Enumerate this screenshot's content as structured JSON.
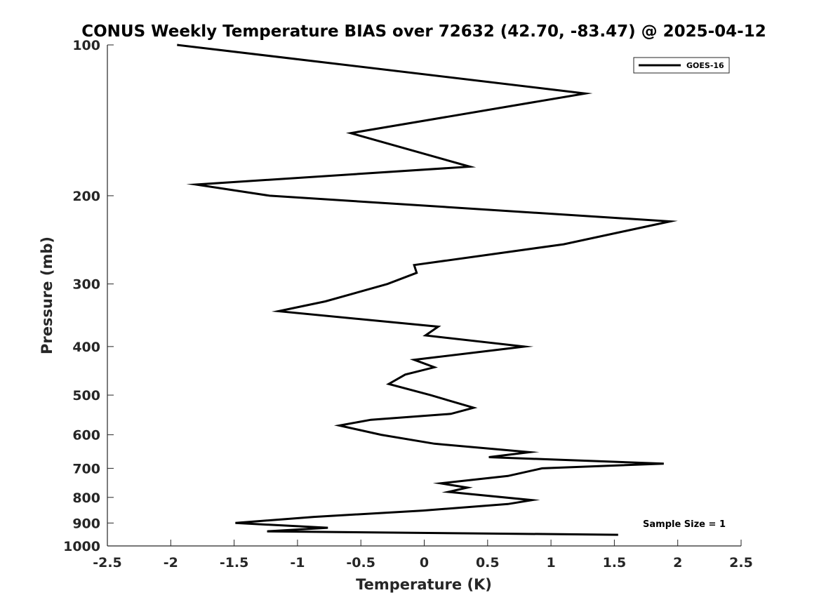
{
  "chart_data": {
    "type": "line",
    "title": "CONUS Weekly Temperature BIAS over 72632 (42.70, -83.47) @ 2025-04-12",
    "xlabel": "Temperature (K)",
    "ylabel": "Pressure (mb)",
    "xlim": [
      -2.5,
      2.5
    ],
    "ylim": [
      100,
      1000
    ],
    "y_scale": "log",
    "y_reversed": true,
    "x_ticks": [
      -2.5,
      -2,
      -1.5,
      -1,
      -0.5,
      0,
      0.5,
      1,
      1.5,
      2,
      2.5
    ],
    "x_tick_labels": [
      "-2.5",
      "-2",
      "-1.5",
      "-1",
      "-0.5",
      "0",
      "0.5",
      "1",
      "1.5",
      "2",
      "2.5"
    ],
    "y_ticks": [
      100,
      200,
      300,
      400,
      500,
      600,
      700,
      800,
      900,
      1000
    ],
    "y_tick_labels": [
      "100",
      "200",
      "300",
      "400",
      "500",
      "600",
      "700",
      "800",
      "900",
      "1000"
    ],
    "grid": false,
    "legend_position": "top-right",
    "series": [
      {
        "name": "GOES-16",
        "color": "#000000",
        "points": [
          {
            "x": -1.95,
            "p": 100
          },
          {
            "x": 1.27,
            "p": 125
          },
          {
            "x": -0.58,
            "p": 150
          },
          {
            "x": 0.36,
            "p": 175
          },
          {
            "x": -1.8,
            "p": 190
          },
          {
            "x": -1.22,
            "p": 200
          },
          {
            "x": 1.94,
            "p": 225
          },
          {
            "x": 1.1,
            "p": 250
          },
          {
            "x": -0.08,
            "p": 275
          },
          {
            "x": -0.06,
            "p": 285
          },
          {
            "x": -0.29,
            "p": 300
          },
          {
            "x": -0.78,
            "p": 325
          },
          {
            "x": -1.15,
            "p": 340
          },
          {
            "x": 0.11,
            "p": 365
          },
          {
            "x": 0.01,
            "p": 380
          },
          {
            "x": 0.79,
            "p": 400
          },
          {
            "x": -0.08,
            "p": 425
          },
          {
            "x": 0.08,
            "p": 440
          },
          {
            "x": -0.15,
            "p": 455
          },
          {
            "x": -0.28,
            "p": 475
          },
          {
            "x": 0.05,
            "p": 500
          },
          {
            "x": 0.39,
            "p": 530
          },
          {
            "x": 0.21,
            "p": 545
          },
          {
            "x": -0.42,
            "p": 560
          },
          {
            "x": -0.67,
            "p": 575
          },
          {
            "x": -0.34,
            "p": 600
          },
          {
            "x": 0.08,
            "p": 625
          },
          {
            "x": 0.83,
            "p": 650
          },
          {
            "x": 0.51,
            "p": 665
          },
          {
            "x": 1.89,
            "p": 685
          },
          {
            "x": 0.93,
            "p": 700
          },
          {
            "x": 0.66,
            "p": 725
          },
          {
            "x": 0.13,
            "p": 750
          },
          {
            "x": 0.34,
            "p": 765
          },
          {
            "x": 0.19,
            "p": 780
          },
          {
            "x": 0.85,
            "p": 810
          },
          {
            "x": 0.66,
            "p": 825
          },
          {
            "x": -0.01,
            "p": 850
          },
          {
            "x": -0.87,
            "p": 875
          },
          {
            "x": -1.49,
            "p": 900
          },
          {
            "x": -0.76,
            "p": 920
          },
          {
            "x": -1.24,
            "p": 935
          },
          {
            "x": 1.53,
            "p": 950
          }
        ]
      }
    ],
    "annotations": [
      {
        "text": "Sample Size = 1",
        "position": "bottom-right"
      }
    ]
  }
}
